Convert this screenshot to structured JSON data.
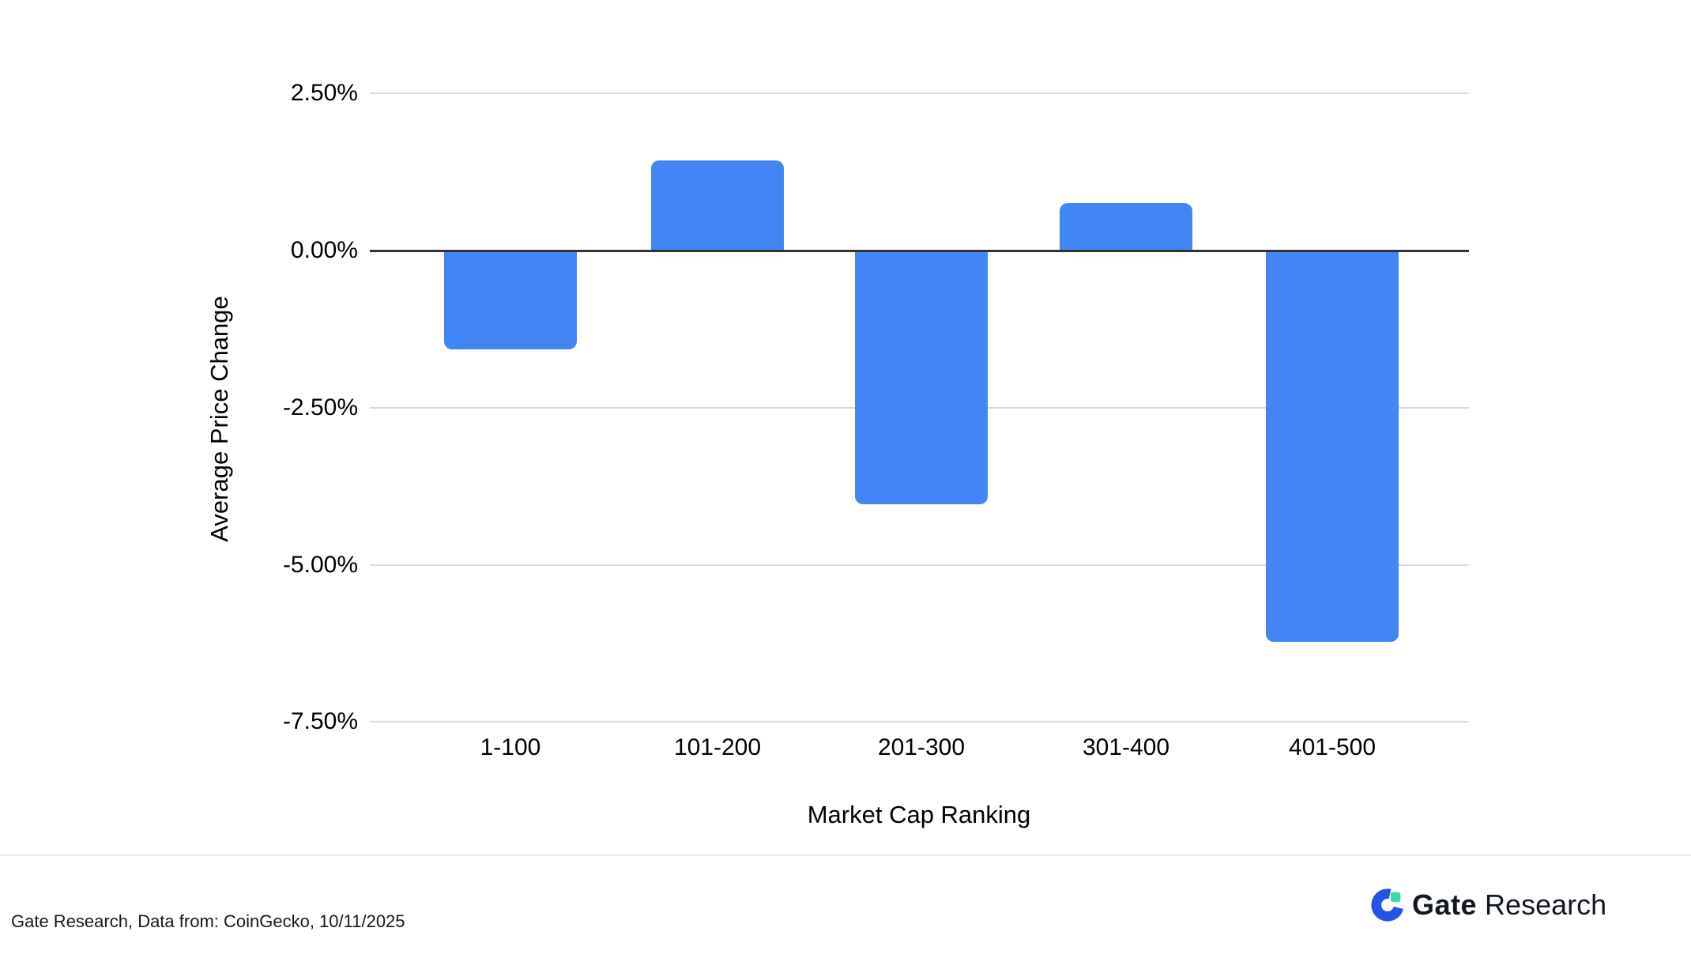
{
  "chart_data": {
    "type": "bar",
    "title": "",
    "categories": [
      "1-100",
      "101-200",
      "201-300",
      "301-400",
      "401-500"
    ],
    "values": [
      -1.56,
      1.43,
      -4.02,
      0.75,
      -6.21
    ],
    "xlabel": "Market Cap Ranking",
    "ylabel": "Average Price Change",
    "ylim": [
      -7.5,
      2.5
    ],
    "grid": true,
    "legend_position": "none",
    "y_ticks": [
      {
        "label": "2.50%",
        "value": 2.5
      },
      {
        "label": "0.00%",
        "value": 0
      },
      {
        "label": "-2.50%",
        "value": -2.5
      },
      {
        "label": "-5.00%",
        "value": -5
      },
      {
        "label": "-7.50%",
        "value": -7.5
      }
    ],
    "bar_color": "#4285F4",
    "axis_line_color": "#333333",
    "gridline_color": "#D9D9D9"
  },
  "footer": {
    "source_text": "Gate Research, Data from: CoinGecko, 10/11/2025",
    "logo": {
      "icon": "gate-logo-icon",
      "brand_bold": "Gate",
      "brand_regular": "Research",
      "icon_blue": "#2354E6",
      "icon_green": "#3EDBA8",
      "text_color": "#121722"
    }
  }
}
